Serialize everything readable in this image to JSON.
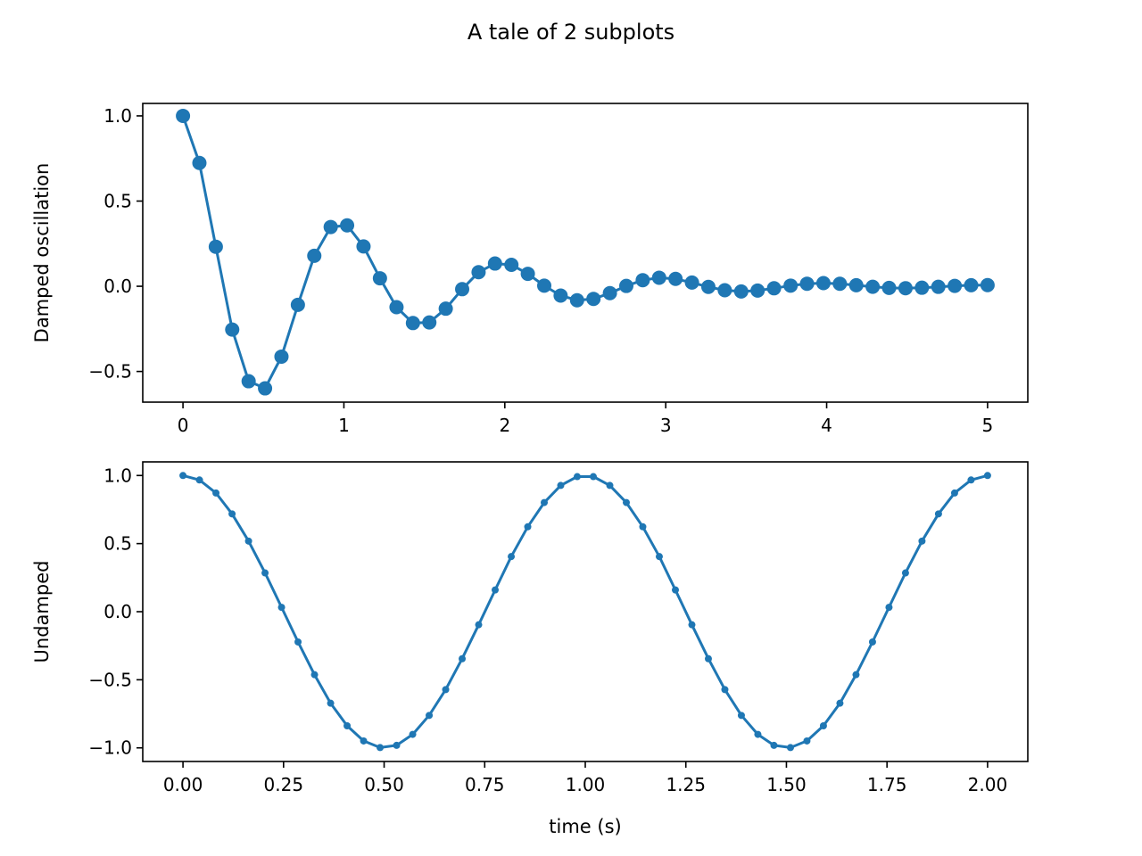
{
  "chart_data": [
    {
      "type": "line",
      "suptitle": "A tale of 2 subplots",
      "xlabel": "",
      "ylabel": "Damped oscillation",
      "xlim": [
        -0.25,
        5.25
      ],
      "ylim": [
        -0.68,
        1.073
      ],
      "xticks": [
        0,
        1,
        2,
        3,
        4,
        5
      ],
      "xtick_labels": [
        "0",
        "1",
        "2",
        "3",
        "4",
        "5"
      ],
      "yticks": [
        -0.5,
        0.0,
        0.5,
        1.0
      ],
      "ytick_labels": [
        "−0.5",
        "0.0",
        "0.5",
        "1.0"
      ],
      "grid": false,
      "marker": "o",
      "color": "#1f77b4",
      "x": [
        0,
        0.102,
        0.204,
        0.306,
        0.408,
        0.51,
        0.612,
        0.714,
        0.816,
        0.918,
        1.02,
        1.122,
        1.224,
        1.327,
        1.429,
        1.531,
        1.633,
        1.735,
        1.837,
        1.939,
        2.041,
        2.143,
        2.245,
        2.347,
        2.449,
        2.551,
        2.653,
        2.755,
        2.857,
        2.959,
        3.061,
        3.163,
        3.265,
        3.367,
        3.469,
        3.571,
        3.673,
        3.776,
        3.878,
        3.98,
        4.082,
        4.184,
        4.286,
        4.388,
        4.49,
        4.592,
        4.694,
        4.796,
        4.898,
        5.0
      ],
      "y": [
        1.0,
        0.7237,
        0.2321,
        -0.2542,
        -0.5572,
        -0.5991,
        -0.4129,
        -0.1089,
        0.1789,
        0.3478,
        0.3575,
        0.2337,
        0.0469,
        -0.1228,
        -0.2159,
        -0.2124,
        -0.1314,
        -0.0169,
        0.0826,
        0.1334,
        0.1257,
        0.0731,
        0.0034,
        -0.0547,
        -0.082,
        -0.074,
        -0.0403,
        0.002,
        0.0358,
        0.0502,
        0.0434,
        0.0219,
        -0.0037,
        -0.0232,
        -0.0306,
        -0.0253,
        -0.0117,
        0.0037,
        0.0149,
        0.0185,
        0.0147,
        0.0062,
        -0.0031,
        -0.0095,
        -0.0112,
        -0.0085,
        -0.0032,
        0.0024,
        0.006,
        0.0067
      ]
    },
    {
      "type": "line",
      "xlabel": "time (s)",
      "ylabel": "Undamped",
      "xlim": [
        -0.1,
        2.1
      ],
      "ylim": [
        -1.1,
        1.1
      ],
      "xticks": [
        0,
        0.25,
        0.5,
        0.75,
        1.0,
        1.25,
        1.5,
        1.75,
        2.0
      ],
      "xtick_labels": [
        "0.00",
        "0.25",
        "0.50",
        "0.75",
        "1.00",
        "1.25",
        "1.50",
        "1.75",
        "2.00"
      ],
      "yticks": [
        -1.0,
        -0.5,
        0.0,
        0.5,
        1.0
      ],
      "ytick_labels": [
        "−1.0",
        "−0.5",
        "0.0",
        "0.5",
        "1.0"
      ],
      "grid": false,
      "marker": ".",
      "color": "#1f77b4",
      "x": [
        0,
        0.041,
        0.082,
        0.122,
        0.163,
        0.204,
        0.245,
        0.286,
        0.327,
        0.367,
        0.408,
        0.449,
        0.49,
        0.531,
        0.571,
        0.612,
        0.653,
        0.694,
        0.735,
        0.776,
        0.816,
        0.857,
        0.898,
        0.939,
        0.98,
        1.02,
        1.061,
        1.102,
        1.143,
        1.184,
        1.224,
        1.265,
        1.306,
        1.347,
        1.388,
        1.429,
        1.469,
        1.51,
        1.551,
        1.592,
        1.633,
        1.673,
        1.714,
        1.755,
        1.796,
        1.837,
        1.878,
        1.918,
        1.959,
        2.0
      ],
      "y": [
        1.0,
        0.9673,
        0.8713,
        0.7181,
        0.5183,
        0.2846,
        0.032,
        -0.2225,
        -0.4626,
        -0.6723,
        -0.8381,
        -0.949,
        -0.9979,
        -0.9816,
        -0.901,
        -0.7617,
        -0.572,
        -0.3453,
        -0.096,
        0.1596,
        0.4048,
        0.6235,
        0.8014,
        0.9269,
        0.9918,
        0.9918,
        0.9269,
        0.8014,
        0.6235,
        0.4048,
        0.1596,
        -0.096,
        -0.3453,
        -0.572,
        -0.7617,
        -0.901,
        -0.9816,
        -0.9979,
        -0.949,
        -0.8381,
        -0.6723,
        -0.4626,
        -0.2225,
        0.032,
        0.2846,
        0.5183,
        0.7181,
        0.8713,
        0.9673,
        1.0
      ]
    }
  ]
}
